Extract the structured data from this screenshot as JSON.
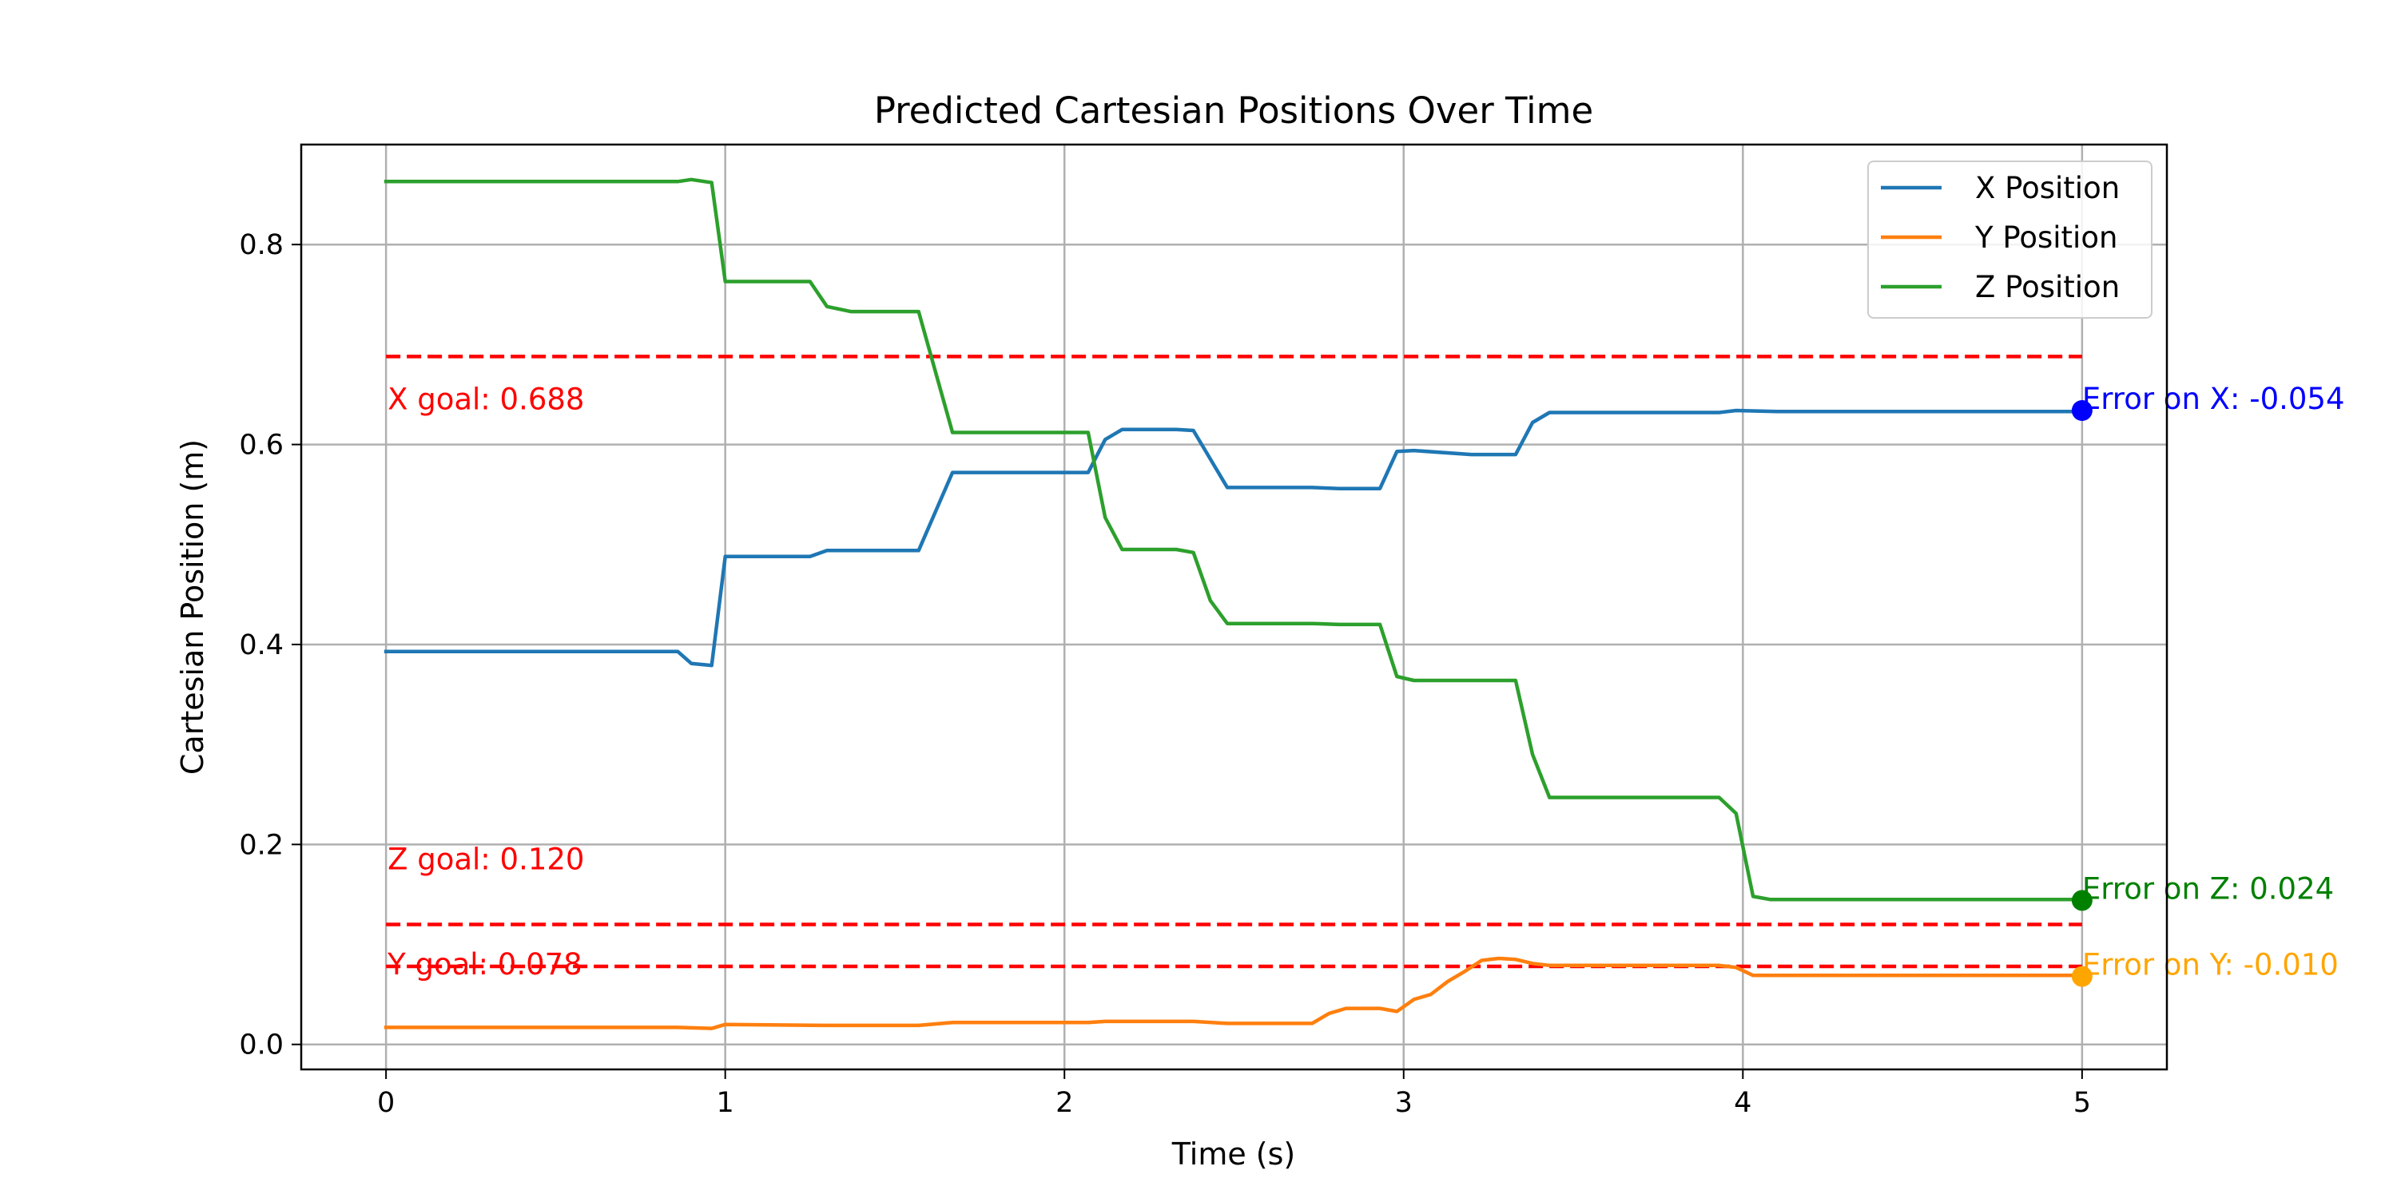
{
  "chart_data": {
    "type": "line",
    "title": "Predicted Cartesian Positions Over Time",
    "xlabel": "Time (s)",
    "ylabel": "Cartesian Position (m)",
    "xlim": [
      -0.25,
      5.25
    ],
    "ylim": [
      -0.025,
      0.9
    ],
    "xticks": [
      0,
      1,
      2,
      3,
      4,
      5
    ],
    "xtick_labels": [
      "0",
      "1",
      "2",
      "3",
      "4",
      "5"
    ],
    "yticks": [
      0.0,
      0.2,
      0.4,
      0.6,
      0.8
    ],
    "ytick_labels": [
      "0.0",
      "0.2",
      "0.4",
      "0.6",
      "0.8"
    ],
    "grid": true,
    "legend_position": "top-right",
    "series": [
      {
        "name": "X Position",
        "color": "#1f77b4",
        "x": [
          0,
          0.86,
          0.9,
          0.96,
          1.0,
          1.25,
          1.3,
          1.57,
          1.67,
          2.07,
          2.12,
          2.17,
          2.33,
          2.38,
          2.48,
          2.73,
          2.81,
          2.93,
          2.98,
          3.03,
          3.2,
          3.33,
          3.38,
          3.43,
          3.93,
          3.98,
          4.1,
          5.0
        ],
        "y": [
          0.393,
          0.393,
          0.381,
          0.379,
          0.488,
          0.488,
          0.494,
          0.494,
          0.572,
          0.572,
          0.605,
          0.615,
          0.615,
          0.614,
          0.557,
          0.557,
          0.556,
          0.556,
          0.593,
          0.594,
          0.59,
          0.59,
          0.622,
          0.632,
          0.632,
          0.634,
          0.633,
          0.633
        ]
      },
      {
        "name": "Y Position",
        "color": "#ff7f0e",
        "x": [
          0,
          0.86,
          0.96,
          1.0,
          1.3,
          1.57,
          1.67,
          2.07,
          2.12,
          2.38,
          2.48,
          2.73,
          2.78,
          2.83,
          2.93,
          2.98,
          3.03,
          3.08,
          3.13,
          3.18,
          3.23,
          3.28,
          3.33,
          3.38,
          3.43,
          3.93,
          3.98,
          4.03,
          5.0
        ],
        "y": [
          0.017,
          0.017,
          0.016,
          0.02,
          0.019,
          0.019,
          0.022,
          0.022,
          0.023,
          0.023,
          0.021,
          0.021,
          0.031,
          0.036,
          0.036,
          0.033,
          0.045,
          0.05,
          0.063,
          0.073,
          0.084,
          0.086,
          0.085,
          0.081,
          0.079,
          0.079,
          0.077,
          0.069,
          0.069
        ]
      },
      {
        "name": "Z Position",
        "color": "#2ca02c",
        "x": [
          0,
          0.86,
          0.9,
          0.96,
          1.0,
          1.25,
          1.3,
          1.37,
          1.57,
          1.67,
          2.07,
          2.12,
          2.17,
          2.33,
          2.38,
          2.43,
          2.48,
          2.73,
          2.81,
          2.93,
          2.98,
          3.03,
          3.33,
          3.38,
          3.43,
          3.93,
          3.98,
          4.03,
          4.08,
          5.0
        ],
        "y": [
          0.863,
          0.863,
          0.865,
          0.862,
          0.763,
          0.763,
          0.738,
          0.733,
          0.733,
          0.612,
          0.612,
          0.527,
          0.495,
          0.495,
          0.492,
          0.444,
          0.421,
          0.421,
          0.42,
          0.42,
          0.368,
          0.364,
          0.364,
          0.29,
          0.247,
          0.247,
          0.231,
          0.148,
          0.145,
          0.145
        ]
      }
    ],
    "goal_lines": [
      {
        "label": "X goal: 0.688",
        "y": 0.688,
        "x_start": 0,
        "x_end": 5,
        "color": "#ff0000",
        "label_y": 0.64
      },
      {
        "label": "Z goal: 0.120",
        "y": 0.12,
        "x_start": 0,
        "x_end": 5,
        "color": "#ff0000",
        "label_y": 0.18
      },
      {
        "label": "Y goal: 0.078",
        "y": 0.078,
        "x_start": 0,
        "x_end": 5,
        "color": "#ff0000",
        "label_y": 0.075
      }
    ],
    "end_markers": [
      {
        "label": "Error on X: -0.054",
        "x": 5,
        "y": 0.634,
        "color": "#0000ff"
      },
      {
        "label": "Error on Z: 0.024",
        "x": 5,
        "y": 0.144,
        "color": "#008000"
      },
      {
        "label": "Error on Y: -0.010",
        "x": 5,
        "y": 0.068,
        "color": "#ffa500"
      }
    ]
  }
}
